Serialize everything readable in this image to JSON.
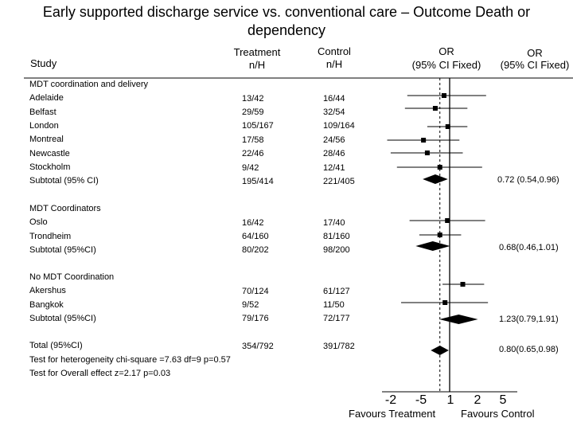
{
  "title_line1": "Early supported discharge service vs. conventional care – Outcome Death or",
  "title_line2": "dependency",
  "headers": {
    "study": "Study",
    "treatment_1": "Treatment",
    "treatment_2": "n/H",
    "control_1": "Control",
    "control_2": "n/H",
    "or1_1": "OR",
    "or1_2": "(95% CI Fixed)",
    "or2_1": "OR",
    "or2_2": "(95% CI Fixed)"
  },
  "groups": [
    {
      "name": "MDT coordination and delivery",
      "rows": [
        {
          "study": "Adelaide",
          "treatment": "13/42",
          "control": "16/44"
        },
        {
          "study": "Belfast",
          "treatment": "29/59",
          "control": "32/54"
        },
        {
          "study": "London",
          "treatment": "105/167",
          "control": "109/164"
        },
        {
          "study": "Montreal",
          "treatment": "17/58",
          "control": "24/56"
        },
        {
          "study": "Newcastle",
          "treatment": "22/46",
          "control": "28/46"
        },
        {
          "study": "Stockholm",
          "treatment": "9/42",
          "control": "12/41"
        }
      ],
      "subtotal": {
        "label": "Subtotal (95% CI)",
        "treatment": "195/414",
        "control": "221/405",
        "or": "0.72 (0.54,0.96)"
      }
    },
    {
      "name": "MDT Coordinators",
      "rows": [
        {
          "study": "Oslo",
          "treatment": "16/42",
          "control": "17/40"
        },
        {
          "study": "Trondheim",
          "treatment": "64/160",
          "control": "81/160"
        }
      ],
      "subtotal": {
        "label": "Subtotal (95%CI)",
        "treatment": "80/202",
        "control": "98/200",
        "or": "0.68(0.46,1.01)"
      }
    },
    {
      "name": "No MDT Coordination",
      "rows": [
        {
          "study": "Akershus",
          "treatment": "70/124",
          "control": "61/127"
        },
        {
          "study": "Bangkok",
          "treatment": "9/52",
          "control": "11/50"
        }
      ],
      "subtotal": {
        "label": "Subtotal (95%CI)",
        "treatment": "79/176",
        "control": "72/177",
        "or": "1.23(0.79,1.91)"
      }
    }
  ],
  "total": {
    "label": "Total (95%CI)",
    "treatment": "354/792",
    "control": "391/782",
    "or": "0.80(0.65,0.98)"
  },
  "tests": [
    "Test for heterogeneity chi-square =7.63 df=9 p=0.57",
    "Test for Overall effect z=2.17 p=0.03"
  ],
  "axis_ticks": [
    "-2",
    "-5",
    "1",
    "2",
    "5"
  ],
  "favours_left": "Favours Treatment",
  "favours_right": "Favours Control",
  "chart_data": {
    "type": "forest",
    "x_scale": "log",
    "reference_line": 1,
    "pooled_line": 0.8,
    "studies": [
      {
        "name": "Adelaide",
        "or": 0.88,
        "ci": [
          0.38,
          2.3
        ]
      },
      {
        "name": "Belfast",
        "or": 0.72,
        "ci": [
          0.36,
          1.5
        ]
      },
      {
        "name": "London",
        "or": 0.96,
        "ci": [
          0.6,
          1.5
        ]
      },
      {
        "name": "Montreal",
        "or": 0.55,
        "ci": [
          0.24,
          1.25
        ]
      },
      {
        "name": "Newcastle",
        "or": 0.6,
        "ci": [
          0.26,
          1.35
        ]
      },
      {
        "name": "Stockholm",
        "or": 0.8,
        "ci": [
          0.3,
          2.1
        ]
      },
      {
        "name": "Oslo",
        "or": 0.95,
        "ci": [
          0.4,
          2.25
        ]
      },
      {
        "name": "Trondheim",
        "or": 0.8,
        "ci": [
          0.5,
          1.3
        ]
      },
      {
        "name": "Akershus",
        "or": 1.35,
        "ci": [
          0.85,
          2.2
        ]
      },
      {
        "name": "Bangkok",
        "or": 0.9,
        "ci": [
          0.33,
          2.4
        ]
      }
    ],
    "pooled": [
      {
        "name": "Subtotal MDT coordination and delivery",
        "or": 0.72,
        "ci": [
          0.54,
          0.96
        ]
      },
      {
        "name": "Subtotal MDT Coordinators",
        "or": 0.68,
        "ci": [
          0.46,
          1.01
        ]
      },
      {
        "name": "Subtotal No MDT Coordination",
        "or": 1.23,
        "ci": [
          0.79,
          1.91
        ]
      },
      {
        "name": "Total",
        "or": 0.8,
        "ci": [
          0.65,
          0.98
        ]
      }
    ]
  }
}
